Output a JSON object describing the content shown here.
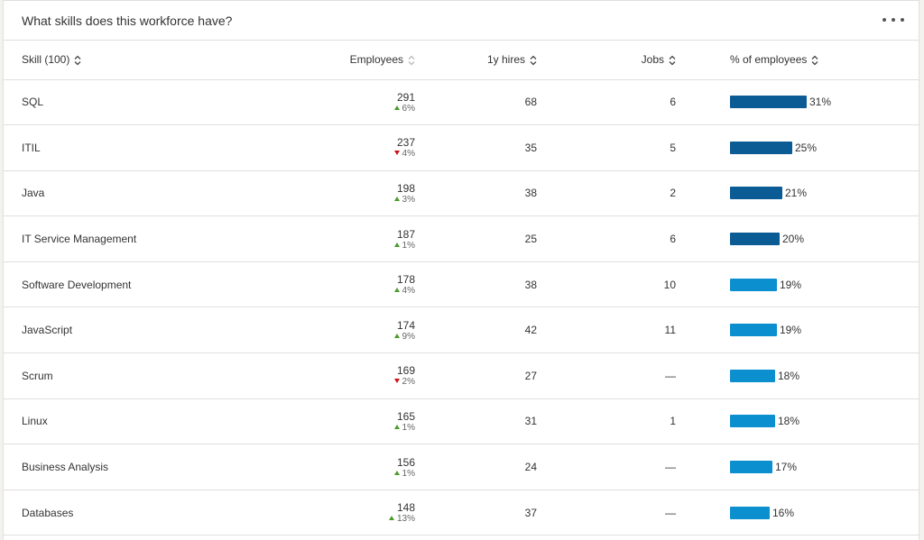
{
  "card": {
    "title": "What skills does this workforce have?",
    "overflow_icon": "more-horizontal-icon"
  },
  "columns": {
    "skill": "Skill (100)",
    "employees": "Employees",
    "hires": "1y hires",
    "jobs": "Jobs",
    "pct": "% of employees"
  },
  "colors": {
    "bar_dark": "#0b5b95",
    "bar_light": "#0c8fcf",
    "delta_up": "#4c9a2a",
    "delta_down": "#cc1016"
  },
  "rows": [
    {
      "skill": "SQL",
      "employees": "291",
      "delta": "6%",
      "direction": "up",
      "hires": "68",
      "jobs": "6",
      "pct": "31%",
      "pct_value": 31,
      "bar": "dark"
    },
    {
      "skill": "ITIL",
      "employees": "237",
      "delta": "4%",
      "direction": "down",
      "hires": "35",
      "jobs": "5",
      "pct": "25%",
      "pct_value": 25,
      "bar": "dark"
    },
    {
      "skill": "Java",
      "employees": "198",
      "delta": "3%",
      "direction": "up",
      "hires": "38",
      "jobs": "2",
      "pct": "21%",
      "pct_value": 21,
      "bar": "dark"
    },
    {
      "skill": "IT Service Management",
      "employees": "187",
      "delta": "1%",
      "direction": "up",
      "hires": "25",
      "jobs": "6",
      "pct": "20%",
      "pct_value": 20,
      "bar": "dark"
    },
    {
      "skill": "Software Development",
      "employees": "178",
      "delta": "4%",
      "direction": "up",
      "hires": "38",
      "jobs": "10",
      "pct": "19%",
      "pct_value": 19,
      "bar": "light"
    },
    {
      "skill": "JavaScript",
      "employees": "174",
      "delta": "9%",
      "direction": "up",
      "hires": "42",
      "jobs": "11",
      "pct": "19%",
      "pct_value": 19,
      "bar": "light"
    },
    {
      "skill": "Scrum",
      "employees": "169",
      "delta": "2%",
      "direction": "down",
      "hires": "27",
      "jobs": "—",
      "pct": "18%",
      "pct_value": 18,
      "bar": "light"
    },
    {
      "skill": "Linux",
      "employees": "165",
      "delta": "1%",
      "direction": "up",
      "hires": "31",
      "jobs": "1",
      "pct": "18%",
      "pct_value": 18,
      "bar": "light"
    },
    {
      "skill": "Business Analysis",
      "employees": "156",
      "delta": "1%",
      "direction": "up",
      "hires": "24",
      "jobs": "—",
      "pct": "17%",
      "pct_value": 17,
      "bar": "light"
    },
    {
      "skill": "Databases",
      "employees": "148",
      "delta": "13%",
      "direction": "up",
      "hires": "37",
      "jobs": "—",
      "pct": "16%",
      "pct_value": 16,
      "bar": "light"
    }
  ]
}
